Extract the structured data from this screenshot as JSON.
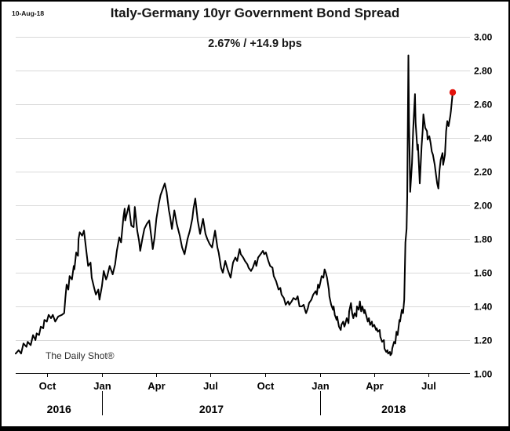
{
  "header": {
    "date_stamp": "10-Aug-18",
    "title": "Italy-Germany 10yr Government Bond Spread",
    "subtitle": "2.67%  /  +14.9 bps"
  },
  "watermark": "The Daily Shot®",
  "chart_data": {
    "type": "line",
    "title": "Italy-Germany 10yr Government Bond Spread",
    "subtitle_current_value": "2.67%  /  +14.9 bps",
    "current_value_pct": 2.67,
    "daily_change_bps": 14.9,
    "as_of_date": "10-Aug-18",
    "ylabel": "",
    "xlabel": "",
    "ylim": [
      1.0,
      3.0
    ],
    "y_ticks": [
      3.0,
      2.8,
      2.6,
      2.4,
      2.2,
      2.0,
      1.8,
      1.6,
      1.4,
      1.2,
      1.0
    ],
    "y_tick_side": "right",
    "grid": true,
    "grid_color": "#d9d9d9",
    "line_color": "#000000",
    "marker_color": "#e3120b",
    "x_range": [
      "2016-08-10",
      "2018-09-03"
    ],
    "x_ticks": [
      {
        "label": "Oct",
        "date": "2016-10-01"
      },
      {
        "label": "Jan",
        "date": "2017-01-01"
      },
      {
        "label": "Apr",
        "date": "2017-04-01"
      },
      {
        "label": "Jul",
        "date": "2017-07-01"
      },
      {
        "label": "Oct",
        "date": "2017-10-01"
      },
      {
        "label": "Jan",
        "date": "2018-01-01"
      },
      {
        "label": "Apr",
        "date": "2018-04-01"
      },
      {
        "label": "Jul",
        "date": "2018-07-01"
      }
    ],
    "year_dividers": [
      "2017-01-01",
      "2018-01-01"
    ],
    "year_labels": [
      "2016",
      "2017",
      "2018"
    ],
    "series": [
      {
        "name": "Italy-Germany 10yr government bond spread (%)",
        "points": [
          [
            "2016-08-10",
            1.12
          ],
          [
            "2016-08-15",
            1.14
          ],
          [
            "2016-08-19",
            1.12
          ],
          [
            "2016-08-23",
            1.18
          ],
          [
            "2016-08-28",
            1.16
          ],
          [
            "2016-08-30",
            1.19
          ],
          [
            "2016-09-04",
            1.17
          ],
          [
            "2016-09-08",
            1.23
          ],
          [
            "2016-09-12",
            1.2
          ],
          [
            "2016-09-14",
            1.24
          ],
          [
            "2016-09-18",
            1.23
          ],
          [
            "2016-09-21",
            1.28
          ],
          [
            "2016-09-25",
            1.27
          ],
          [
            "2016-09-27",
            1.32
          ],
          [
            "2016-10-01",
            1.31
          ],
          [
            "2016-10-04",
            1.35
          ],
          [
            "2016-10-08",
            1.33
          ],
          [
            "2016-10-11",
            1.35
          ],
          [
            "2016-10-15",
            1.31
          ],
          [
            "2016-10-20",
            1.34
          ],
          [
            "2016-10-26",
            1.35
          ],
          [
            "2016-10-30",
            1.36
          ],
          [
            "2016-11-01",
            1.45
          ],
          [
            "2016-11-03",
            1.53
          ],
          [
            "2016-11-06",
            1.5
          ],
          [
            "2016-11-08",
            1.58
          ],
          [
            "2016-11-12",
            1.56
          ],
          [
            "2016-11-15",
            1.64
          ],
          [
            "2016-11-16",
            1.62
          ],
          [
            "2016-11-19",
            1.72
          ],
          [
            "2016-11-22",
            1.7
          ],
          [
            "2016-11-23",
            1.8
          ],
          [
            "2016-11-25",
            1.84
          ],
          [
            "2016-11-29",
            1.82
          ],
          [
            "2016-12-02",
            1.85
          ],
          [
            "2016-12-06",
            1.73
          ],
          [
            "2016-12-09",
            1.64
          ],
          [
            "2016-12-13",
            1.66
          ],
          [
            "2016-12-15",
            1.57
          ],
          [
            "2016-12-19",
            1.51
          ],
          [
            "2016-12-22",
            1.47
          ],
          [
            "2016-12-26",
            1.5
          ],
          [
            "2016-12-28",
            1.44
          ],
          [
            "2017-01-01",
            1.52
          ],
          [
            "2017-01-04",
            1.61
          ],
          [
            "2017-01-08",
            1.56
          ],
          [
            "2017-01-10",
            1.58
          ],
          [
            "2017-01-14",
            1.64
          ],
          [
            "2017-01-19",
            1.59
          ],
          [
            "2017-01-23",
            1.65
          ],
          [
            "2017-01-26",
            1.73
          ],
          [
            "2017-01-30",
            1.81
          ],
          [
            "2017-02-02",
            1.78
          ],
          [
            "2017-02-06",
            1.93
          ],
          [
            "2017-02-08",
            1.98
          ],
          [
            "2017-02-09",
            1.91
          ],
          [
            "2017-02-15",
            2.0
          ],
          [
            "2017-02-19",
            1.88
          ],
          [
            "2017-02-23",
            1.87
          ],
          [
            "2017-02-25",
            1.99
          ],
          [
            "2017-03-01",
            1.85
          ],
          [
            "2017-03-04",
            1.79
          ],
          [
            "2017-03-06",
            1.73
          ],
          [
            "2017-03-10",
            1.81
          ],
          [
            "2017-03-13",
            1.86
          ],
          [
            "2017-03-17",
            1.89
          ],
          [
            "2017-03-21",
            1.91
          ],
          [
            "2017-03-26",
            1.77
          ],
          [
            "2017-03-27",
            1.74
          ],
          [
            "2017-03-30",
            1.81
          ],
          [
            "2017-04-02",
            1.92
          ],
          [
            "2017-04-06",
            2.01
          ],
          [
            "2017-04-09",
            2.06
          ],
          [
            "2017-04-16",
            2.13
          ],
          [
            "2017-04-19",
            2.08
          ],
          [
            "2017-04-23",
            1.97
          ],
          [
            "2017-04-25",
            1.93
          ],
          [
            "2017-04-28",
            1.86
          ],
          [
            "2017-05-02",
            1.97
          ],
          [
            "2017-05-06",
            1.89
          ],
          [
            "2017-05-11",
            1.82
          ],
          [
            "2017-05-15",
            1.75
          ],
          [
            "2017-05-19",
            1.71
          ],
          [
            "2017-05-24",
            1.8
          ],
          [
            "2017-05-28",
            1.85
          ],
          [
            "2017-06-01",
            1.92
          ],
          [
            "2017-06-03",
            1.98
          ],
          [
            "2017-06-06",
            2.04
          ],
          [
            "2017-06-10",
            1.91
          ],
          [
            "2017-06-14",
            1.83
          ],
          [
            "2017-06-19",
            1.92
          ],
          [
            "2017-06-23",
            1.83
          ],
          [
            "2017-06-26",
            1.8
          ],
          [
            "2017-06-30",
            1.77
          ],
          [
            "2017-07-04",
            1.75
          ],
          [
            "2017-07-09",
            1.85
          ],
          [
            "2017-07-13",
            1.75
          ],
          [
            "2017-07-15",
            1.72
          ],
          [
            "2017-07-19",
            1.63
          ],
          [
            "2017-07-22",
            1.6
          ],
          [
            "2017-07-26",
            1.67
          ],
          [
            "2017-07-30",
            1.62
          ],
          [
            "2017-08-04",
            1.57
          ],
          [
            "2017-08-08",
            1.66
          ],
          [
            "2017-08-12",
            1.69
          ],
          [
            "2017-08-15",
            1.67
          ],
          [
            "2017-08-19",
            1.74
          ],
          [
            "2017-08-21",
            1.71
          ],
          [
            "2017-08-25",
            1.69
          ],
          [
            "2017-08-28",
            1.67
          ],
          [
            "2017-09-01",
            1.65
          ],
          [
            "2017-09-03",
            1.63
          ],
          [
            "2017-09-07",
            1.61
          ],
          [
            "2017-09-10",
            1.63
          ],
          [
            "2017-09-14",
            1.67
          ],
          [
            "2017-09-16",
            1.64
          ],
          [
            "2017-09-19",
            1.69
          ],
          [
            "2017-09-23",
            1.71
          ],
          [
            "2017-09-27",
            1.73
          ],
          [
            "2017-09-29",
            1.71
          ],
          [
            "2017-10-02",
            1.72
          ],
          [
            "2017-10-06",
            1.67
          ],
          [
            "2017-10-09",
            1.64
          ],
          [
            "2017-10-13",
            1.63
          ],
          [
            "2017-10-15",
            1.58
          ],
          [
            "2017-10-19",
            1.55
          ],
          [
            "2017-10-23",
            1.5
          ],
          [
            "2017-10-26",
            1.51
          ],
          [
            "2017-10-28",
            1.47
          ],
          [
            "2017-11-01",
            1.45
          ],
          [
            "2017-11-04",
            1.41
          ],
          [
            "2017-11-08",
            1.43
          ],
          [
            "2017-11-10",
            1.41
          ],
          [
            "2017-11-14",
            1.43
          ],
          [
            "2017-11-17",
            1.45
          ],
          [
            "2017-11-21",
            1.44
          ],
          [
            "2017-11-24",
            1.46
          ],
          [
            "2017-11-27",
            1.4
          ],
          [
            "2017-12-01",
            1.4
          ],
          [
            "2017-12-04",
            1.41
          ],
          [
            "2017-12-07",
            1.37
          ],
          [
            "2017-12-08",
            1.36
          ],
          [
            "2017-12-11",
            1.39
          ],
          [
            "2017-12-13",
            1.42
          ],
          [
            "2017-12-17",
            1.44
          ],
          [
            "2017-12-20",
            1.47
          ],
          [
            "2017-12-24",
            1.49
          ],
          [
            "2017-12-26",
            1.47
          ],
          [
            "2017-12-28",
            1.53
          ],
          [
            "2017-12-30",
            1.51
          ],
          [
            "2018-01-02",
            1.56
          ],
          [
            "2018-01-03",
            1.58
          ],
          [
            "2018-01-06",
            1.57
          ],
          [
            "2018-01-08",
            1.62
          ],
          [
            "2018-01-10",
            1.6
          ],
          [
            "2018-01-12",
            1.57
          ],
          [
            "2018-01-15",
            1.5
          ],
          [
            "2018-01-16",
            1.46
          ],
          [
            "2018-01-19",
            1.41
          ],
          [
            "2018-01-22",
            1.38
          ],
          [
            "2018-01-23",
            1.4
          ],
          [
            "2018-01-25",
            1.35
          ],
          [
            "2018-01-28",
            1.32
          ],
          [
            "2018-01-29",
            1.34
          ],
          [
            "2018-02-01",
            1.28
          ],
          [
            "2018-02-04",
            1.26
          ],
          [
            "2018-02-05",
            1.29
          ],
          [
            "2018-02-08",
            1.31
          ],
          [
            "2018-02-10",
            1.28
          ],
          [
            "2018-02-11",
            1.29
          ],
          [
            "2018-02-14",
            1.33
          ],
          [
            "2018-02-17",
            1.3
          ],
          [
            "2018-02-18",
            1.37
          ],
          [
            "2018-02-21",
            1.42
          ],
          [
            "2018-02-23",
            1.36
          ],
          [
            "2018-02-25",
            1.33
          ],
          [
            "2018-02-27",
            1.36
          ],
          [
            "2018-03-02",
            1.34
          ],
          [
            "2018-03-03",
            1.4
          ],
          [
            "2018-03-06",
            1.38
          ],
          [
            "2018-03-08",
            1.43
          ],
          [
            "2018-03-10",
            1.37
          ],
          [
            "2018-03-12",
            1.4
          ],
          [
            "2018-03-15",
            1.36
          ],
          [
            "2018-03-16",
            1.38
          ],
          [
            "2018-03-19",
            1.34
          ],
          [
            "2018-03-21",
            1.31
          ],
          [
            "2018-03-23",
            1.33
          ],
          [
            "2018-03-25",
            1.29
          ],
          [
            "2018-03-28",
            1.31
          ],
          [
            "2018-03-29",
            1.28
          ],
          [
            "2018-04-01",
            1.29
          ],
          [
            "2018-04-04",
            1.26
          ],
          [
            "2018-04-05",
            1.27
          ],
          [
            "2018-04-07",
            1.25
          ],
          [
            "2018-04-10",
            1.26
          ],
          [
            "2018-04-11",
            1.22
          ],
          [
            "2018-04-14",
            1.19
          ],
          [
            "2018-04-17",
            1.2
          ],
          [
            "2018-04-18",
            1.15
          ],
          [
            "2018-04-21",
            1.13
          ],
          [
            "2018-04-23",
            1.14
          ],
          [
            "2018-04-24",
            1.12
          ],
          [
            "2018-04-27",
            1.13
          ],
          [
            "2018-04-28",
            1.11
          ],
          [
            "2018-04-30",
            1.12
          ],
          [
            "2018-05-01",
            1.15
          ],
          [
            "2018-05-04",
            1.19
          ],
          [
            "2018-05-06",
            1.18
          ],
          [
            "2018-05-08",
            1.25
          ],
          [
            "2018-05-10",
            1.23
          ],
          [
            "2018-05-13",
            1.32
          ],
          [
            "2018-05-14",
            1.31
          ],
          [
            "2018-05-17",
            1.38
          ],
          [
            "2018-05-19",
            1.36
          ],
          [
            "2018-05-21",
            1.44
          ],
          [
            "2018-05-22",
            1.62
          ],
          [
            "2018-05-23",
            1.78
          ],
          [
            "2018-05-25",
            1.86
          ],
          [
            "2018-05-26",
            2.05
          ],
          [
            "2018-05-28",
            2.89
          ],
          [
            "2018-05-29",
            2.5
          ],
          [
            "2018-05-30",
            2.28
          ],
          [
            "2018-05-31",
            2.08
          ],
          [
            "2018-06-03",
            2.25
          ],
          [
            "2018-06-05",
            2.45
          ],
          [
            "2018-06-08",
            2.66
          ],
          [
            "2018-06-09",
            2.49
          ],
          [
            "2018-06-12",
            2.33
          ],
          [
            "2018-06-13",
            2.36
          ],
          [
            "2018-06-15",
            2.2
          ],
          [
            "2018-06-16",
            2.13
          ],
          [
            "2018-06-19",
            2.35
          ],
          [
            "2018-06-21",
            2.45
          ],
          [
            "2018-06-22",
            2.54
          ],
          [
            "2018-06-25",
            2.46
          ],
          [
            "2018-06-28",
            2.44
          ],
          [
            "2018-06-29",
            2.39
          ],
          [
            "2018-07-02",
            2.41
          ],
          [
            "2018-07-04",
            2.37
          ],
          [
            "2018-07-06",
            2.32
          ],
          [
            "2018-07-08",
            2.3
          ],
          [
            "2018-07-11",
            2.24
          ],
          [
            "2018-07-12",
            2.21
          ],
          [
            "2018-07-15",
            2.13
          ],
          [
            "2018-07-17",
            2.1
          ],
          [
            "2018-07-19",
            2.21
          ],
          [
            "2018-07-21",
            2.27
          ],
          [
            "2018-07-24",
            2.31
          ],
          [
            "2018-07-25",
            2.24
          ],
          [
            "2018-07-28",
            2.3
          ],
          [
            "2018-07-30",
            2.44
          ],
          [
            "2018-08-01",
            2.5
          ],
          [
            "2018-08-03",
            2.47
          ],
          [
            "2018-08-06",
            2.53
          ],
          [
            "2018-08-07",
            2.56
          ],
          [
            "2018-08-10",
            2.67
          ]
        ]
      }
    ]
  }
}
